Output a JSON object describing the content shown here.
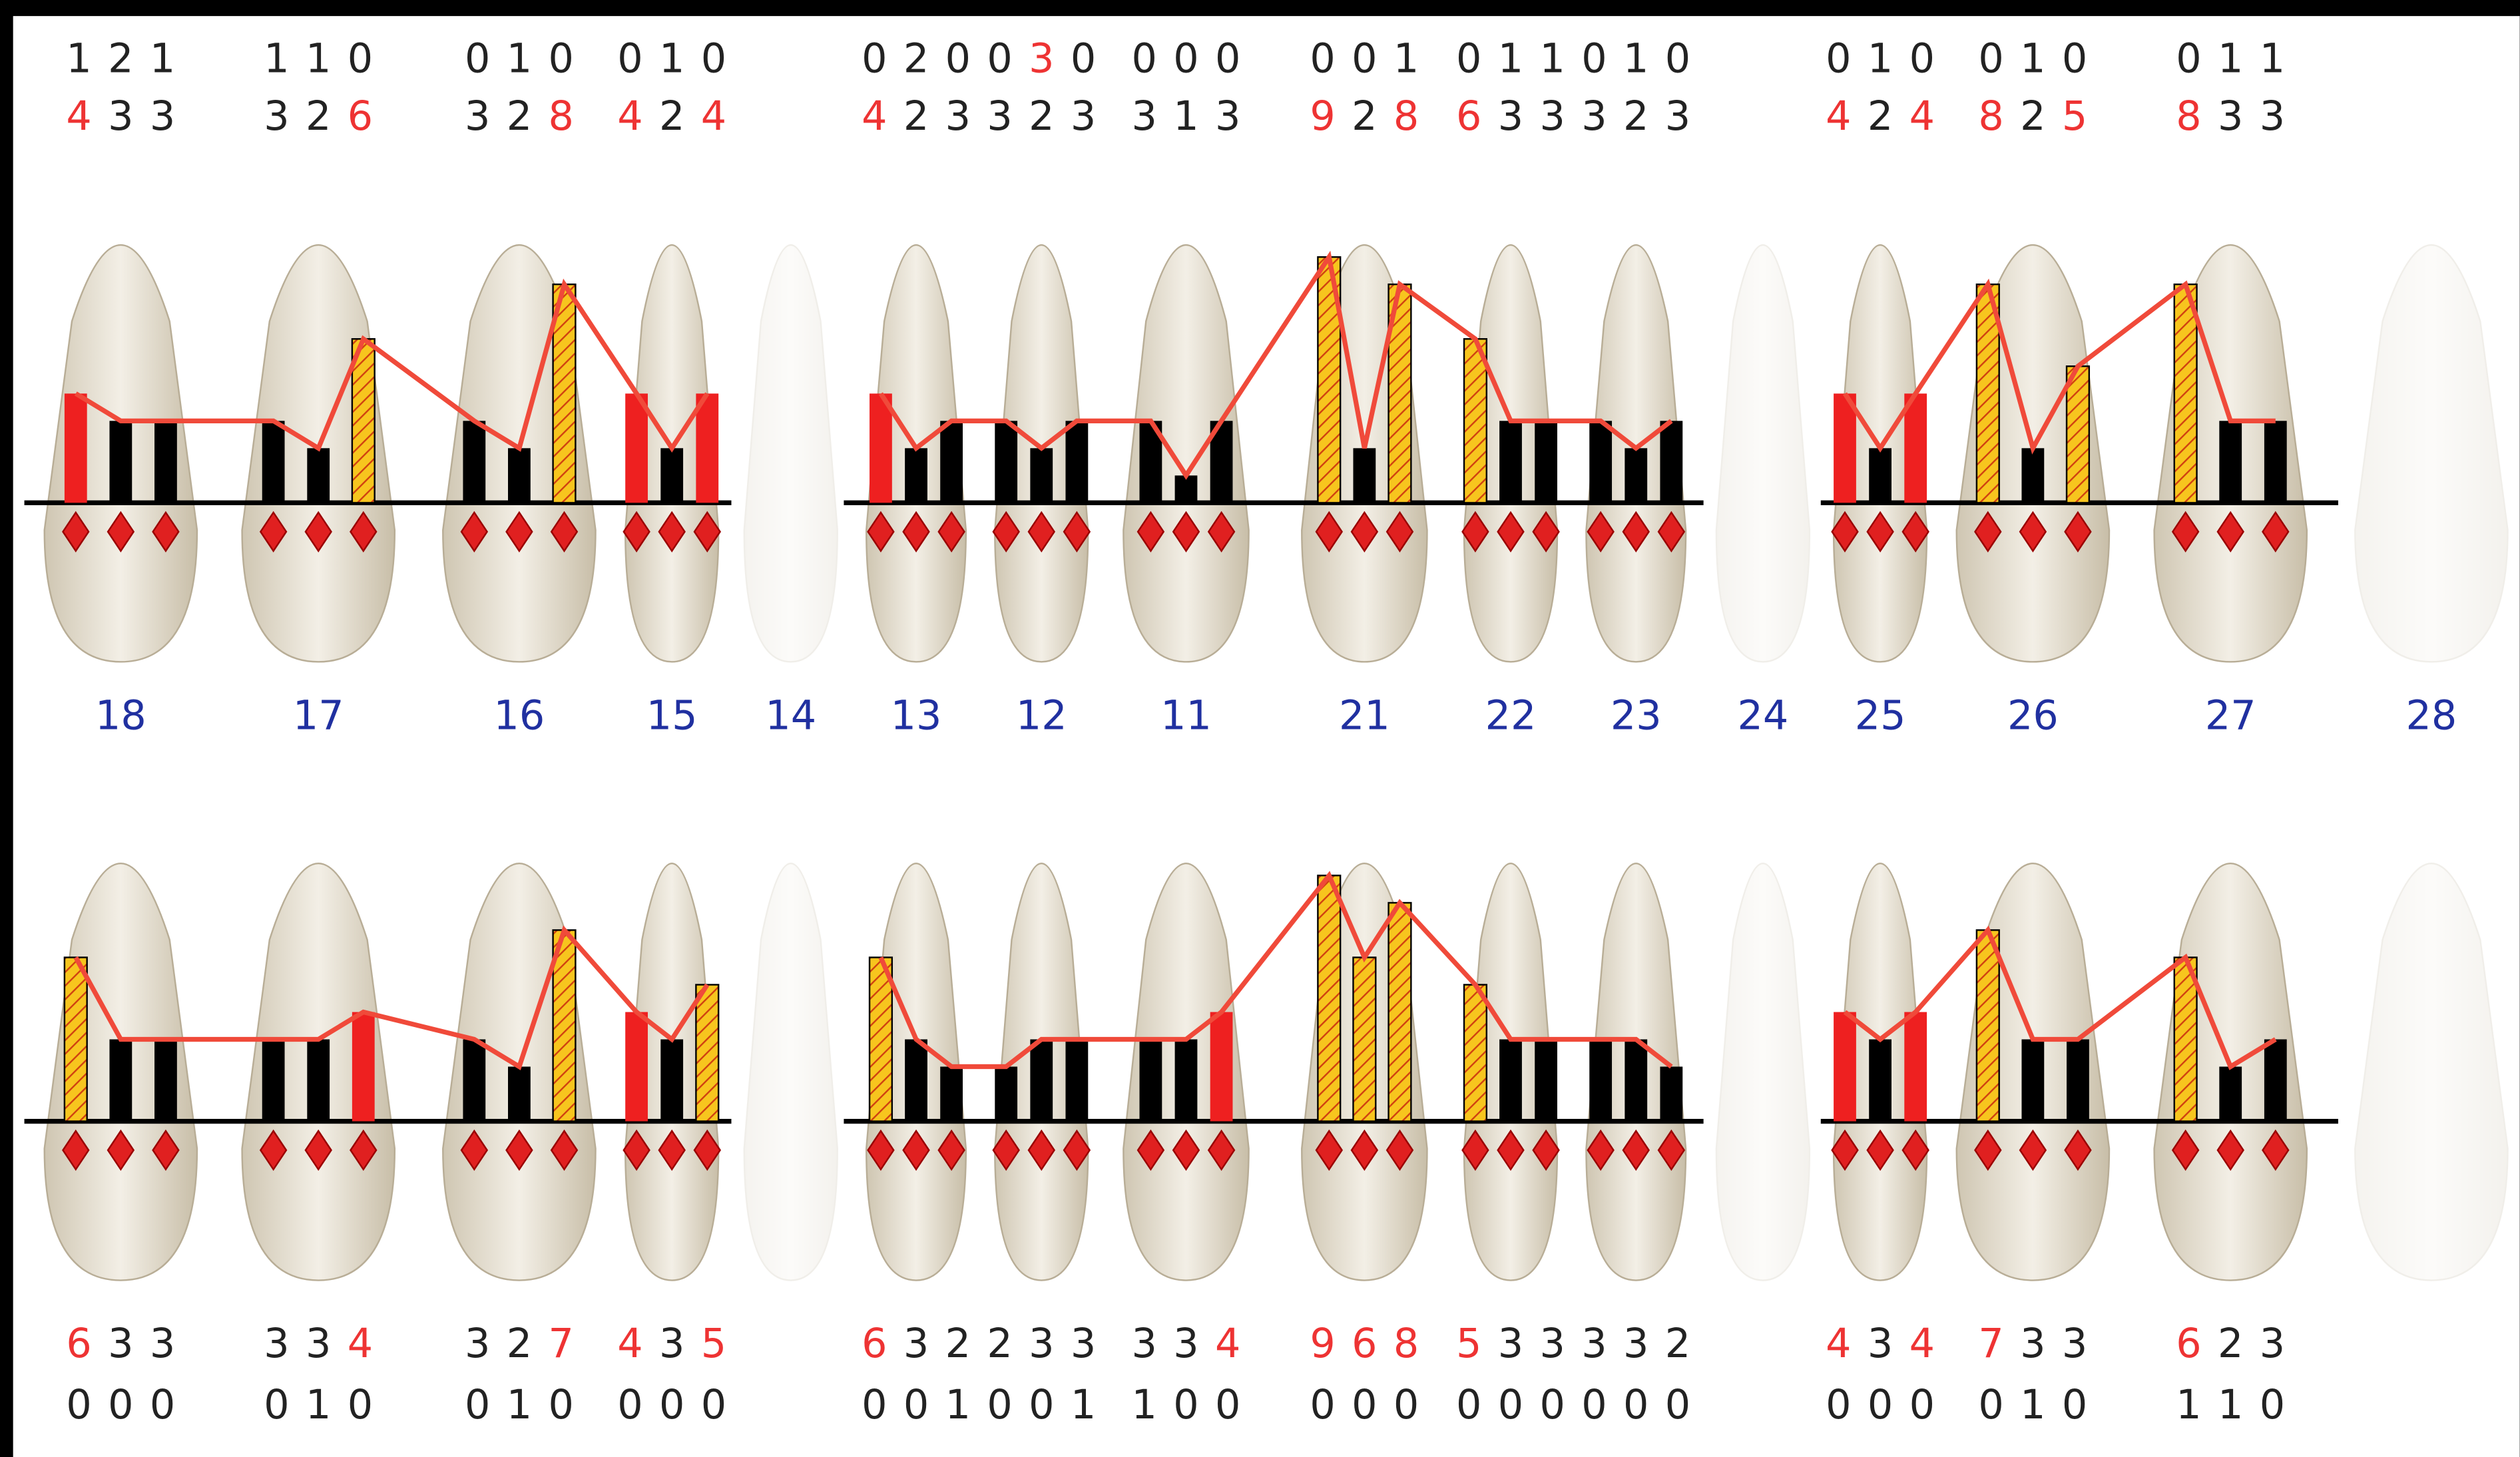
{
  "upper": {
    "teeth": [
      {
        "number": 18,
        "top": [
          1,
          2,
          1
        ],
        "pocket": [
          4,
          3,
          3
        ]
      },
      {
        "number": 17,
        "top": [
          1,
          1,
          0
        ],
        "pocket": [
          3,
          2,
          6
        ]
      },
      {
        "number": 16,
        "top": [
          0,
          1,
          0
        ],
        "pocket": [
          3,
          2,
          8
        ]
      },
      {
        "number": 15,
        "top": [
          0,
          1,
          0
        ],
        "pocket": [
          4,
          2,
          4
        ]
      },
      {
        "number": 14
      },
      {
        "number": 13,
        "top": [
          0,
          2,
          0
        ],
        "pocket": [
          4,
          2,
          3
        ]
      },
      {
        "number": 12,
        "top": [
          0,
          3,
          0
        ],
        "pocket": [
          3,
          2,
          3
        ]
      },
      {
        "number": 11,
        "top": [
          0,
          0,
          0
        ],
        "pocket": [
          3,
          1,
          3
        ]
      },
      {
        "number": 21,
        "top": [
          0,
          0,
          1
        ],
        "pocket": [
          9,
          2,
          8
        ]
      },
      {
        "number": 22,
        "top": [
          0,
          1,
          1
        ],
        "pocket": [
          6,
          3,
          3
        ]
      },
      {
        "number": 23,
        "top": [
          0,
          1,
          0
        ],
        "pocket": [
          3,
          2,
          3
        ]
      },
      {
        "number": 24
      },
      {
        "number": 25,
        "top": [
          0,
          1,
          0
        ],
        "pocket": [
          4,
          2,
          4
        ]
      },
      {
        "number": 26,
        "top": [
          0,
          1,
          0
        ],
        "pocket": [
          8,
          2,
          5
        ]
      },
      {
        "number": 27,
        "top": [
          0,
          1,
          1
        ],
        "pocket": [
          8,
          3,
          3
        ]
      },
      {
        "number": 28
      }
    ]
  },
  "lower": {
    "teeth": [
      {
        "pocket": [
          6,
          3,
          3
        ],
        "bottom": [
          0,
          0,
          0
        ]
      },
      {
        "pocket": [
          3,
          3,
          4
        ],
        "bottom": [
          0,
          1,
          0
        ]
      },
      {
        "pocket": [
          3,
          2,
          7
        ],
        "bottom": [
          0,
          1,
          0
        ]
      },
      {
        "pocket": [
          4,
          3,
          5
        ],
        "bottom": [
          0,
          0,
          0
        ]
      },
      null,
      {
        "pocket": [
          6,
          3,
          2
        ],
        "bottom": [
          0,
          0,
          1
        ]
      },
      {
        "pocket": [
          2,
          3,
          3
        ],
        "bottom": [
          0,
          0,
          1
        ]
      },
      {
        "pocket": [
          3,
          3,
          4
        ],
        "bottom": [
          1,
          0,
          0
        ]
      },
      {
        "pocket": [
          9,
          6,
          8
        ],
        "bottom": [
          0,
          0,
          0
        ]
      },
      {
        "pocket": [
          5,
          3,
          3
        ],
        "bottom": [
          0,
          0,
          0
        ]
      },
      {
        "pocket": [
          3,
          3,
          2
        ],
        "bottom": [
          0,
          0,
          0
        ]
      },
      null,
      {
        "pocket": [
          4,
          3,
          4
        ],
        "bottom": [
          0,
          0,
          0
        ]
      },
      {
        "pocket": [
          7,
          3,
          3
        ],
        "bottom": [
          0,
          1,
          0
        ]
      },
      {
        "pocket": [
          6,
          2,
          3
        ],
        "bottom": [
          1,
          1,
          0
        ]
      },
      null
    ]
  }
}
